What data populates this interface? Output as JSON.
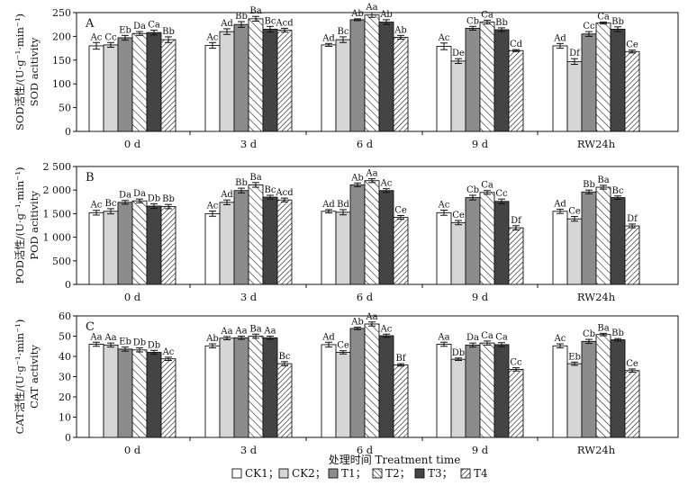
{
  "chart_data": [
    {
      "type": "bar",
      "panel": "A",
      "ylabel": [
        "SOD活性/(U·g⁻¹·min⁻¹)",
        "SOD acitivity"
      ],
      "ylim": [
        0,
        250
      ],
      "yticks": [
        "0",
        "50",
        "100",
        "150",
        "200",
        "250"
      ],
      "ytick_values": [
        0,
        50,
        100,
        150,
        200,
        250
      ],
      "categories": [
        "0 d",
        "3 d",
        "6 d",
        "9 d",
        "RW24h"
      ],
      "series": [
        {
          "name": "CK1",
          "values": [
            180,
            181,
            182,
            179,
            180
          ],
          "errors": [
            7,
            6,
            3,
            7,
            5
          ],
          "labels": [
            "Ac",
            "Ac",
            "Ad",
            "Ac",
            "Ad"
          ]
        },
        {
          "name": "CK2",
          "values": [
            182,
            210,
            193,
            148,
            147
          ],
          "errors": [
            5,
            6,
            6,
            5,
            6
          ],
          "labels": [
            "Cc",
            "Ad",
            "Bc",
            "De",
            "Df"
          ]
        },
        {
          "name": "T1",
          "values": [
            197,
            225,
            235,
            217,
            205
          ],
          "errors": [
            5,
            6,
            2,
            4,
            5
          ],
          "labels": [
            "Eb",
            "Bb",
            "Ab",
            "Cb",
            "Cc"
          ]
        },
        {
          "name": "T2",
          "values": [
            206,
            237,
            245,
            230,
            228
          ],
          "errors": [
            4,
            5,
            5,
            4,
            2
          ],
          "labels": [
            "Da",
            "Ba",
            "Aa",
            "Ca",
            "Ca"
          ]
        },
        {
          "name": "T3",
          "values": [
            208,
            215,
            230,
            214,
            215
          ],
          "errors": [
            5,
            6,
            5,
            4,
            5
          ],
          "labels": [
            "Ca",
            "Bc",
            "Ab",
            "Bb",
            "Bb"
          ]
        },
        {
          "name": "T4",
          "values": [
            193,
            213,
            198,
            170,
            168
          ],
          "errors": [
            6,
            4,
            4,
            2,
            3
          ],
          "labels": [
            "Bb",
            "Acd",
            "Ab",
            "Cd",
            "Ce"
          ]
        }
      ]
    },
    {
      "type": "bar",
      "panel": "B",
      "ylabel": [
        "POD活性/(U·g⁻¹·min⁻¹)",
        "POD acitivity"
      ],
      "ylim": [
        0,
        2500
      ],
      "yticks": [
        "0",
        "500",
        "1 000",
        "1 500",
        "2 000",
        "2 500"
      ],
      "ytick_values": [
        0,
        500,
        1000,
        1500,
        2000,
        2500
      ],
      "categories": [
        "0 d",
        "3 d",
        "6 d",
        "9 d",
        "RW24h"
      ],
      "series": [
        {
          "name": "CK1",
          "values": [
            1520,
            1500,
            1550,
            1520,
            1550
          ],
          "errors": [
            50,
            55,
            35,
            55,
            45
          ],
          "labels": [
            "Ac",
            "Ac",
            "Ad",
            "Ac",
            "Ad"
          ]
        },
        {
          "name": "CK2",
          "values": [
            1550,
            1740,
            1530,
            1310,
            1390
          ],
          "errors": [
            55,
            50,
            55,
            45,
            50
          ],
          "labels": [
            "Bc",
            "Ad",
            "Bd",
            "Ce",
            "Ce"
          ]
        },
        {
          "name": "T1",
          "values": [
            1740,
            1990,
            2110,
            1840,
            1960
          ],
          "errors": [
            40,
            50,
            40,
            50,
            40
          ],
          "labels": [
            "Da",
            "Bb",
            "Ab",
            "Cb",
            "Bb"
          ]
        },
        {
          "name": "T2",
          "values": [
            1770,
            2110,
            2200,
            1950,
            2060
          ],
          "errors": [
            40,
            50,
            40,
            40,
            40
          ],
          "labels": [
            "Da",
            "Ba",
            "Aa",
            "Ca",
            "Ba"
          ]
        },
        {
          "name": "T3",
          "values": [
            1660,
            1850,
            1990,
            1760,
            1840
          ],
          "errors": [
            50,
            40,
            40,
            50,
            35
          ],
          "labels": [
            "Db",
            "Bc",
            "Ac",
            "Cc",
            "Bc"
          ]
        },
        {
          "name": "T4",
          "values": [
            1650,
            1790,
            1420,
            1200,
            1240
          ],
          "errors": [
            45,
            40,
            40,
            45,
            40
          ],
          "labels": [
            "Bb",
            "Acd",
            "Ce",
            "Df",
            "Df"
          ]
        }
      ]
    },
    {
      "type": "bar",
      "panel": "C",
      "ylabel": [
        "CAT活性/(U·g⁻¹·min⁻¹)",
        "CAT activity"
      ],
      "ylim": [
        0,
        60
      ],
      "yticks": [
        "0",
        "10",
        "20",
        "30",
        "40",
        "50",
        "60"
      ],
      "ytick_values": [
        0,
        10,
        20,
        30,
        40,
        50,
        60
      ],
      "categories": [
        "0 d",
        "3 d",
        "6 d",
        "9 d",
        "RW24h"
      ],
      "series": [
        {
          "name": "CK1",
          "values": [
            46.0,
            45.2,
            45.8,
            46.0,
            45.2
          ],
          "errors": [
            1.0,
            1.0,
            1.2,
            1.0,
            1.0
          ],
          "labels": [
            "Aa",
            "Ab",
            "Ad",
            "Aa",
            "Ac"
          ]
        },
        {
          "name": "CK2",
          "values": [
            45.6,
            49.0,
            42.0,
            38.6,
            36.4
          ],
          "errors": [
            1.0,
            0.8,
            0.8,
            0.6,
            0.8
          ],
          "labels": [
            "Aa",
            "Aa",
            "Ce",
            "Db",
            "Eb"
          ]
        },
        {
          "name": "T1",
          "values": [
            43.6,
            49.2,
            53.8,
            45.6,
            47.4
          ],
          "errors": [
            1.0,
            0.8,
            0.6,
            1.0,
            1.0
          ],
          "labels": [
            "Eb",
            "Aa",
            "Ab",
            "Da",
            "Cb"
          ]
        },
        {
          "name": "T2",
          "values": [
            43.2,
            50.0,
            56.0,
            46.6,
            50.8
          ],
          "errors": [
            1.0,
            1.0,
            1.0,
            1.0,
            0.6
          ],
          "labels": [
            "Db",
            "Ba",
            "Aa",
            "Ca",
            "Ba"
          ]
        },
        {
          "name": "T3",
          "values": [
            42.0,
            49.2,
            50.2,
            45.8,
            48.2
          ],
          "errors": [
            1.0,
            0.8,
            0.8,
            1.0,
            0.6
          ],
          "labels": [
            "Db",
            "Aa",
            "Ac",
            "Ca",
            "Bb"
          ]
        },
        {
          "name": "T4",
          "values": [
            38.8,
            36.4,
            35.8,
            33.6,
            33.0
          ],
          "errors": [
            0.8,
            1.0,
            0.6,
            0.8,
            0.8
          ],
          "labels": [
            "Ac",
            "Bc",
            "Bf",
            "Cc",
            "Ce"
          ]
        }
      ]
    }
  ],
  "xlabel": "处理时间 Treatment time",
  "legend": {
    "placement": "bottom-center",
    "entries": [
      "CK1；",
      "CK2；",
      "T1；",
      "T2；",
      "T3；",
      "T4"
    ]
  },
  "style": {
    "fills": [
      "#ffffff",
      "#d6d6d6",
      "#8c8c8c",
      "hatch-light",
      "#444444",
      "hatch-dense"
    ]
  }
}
